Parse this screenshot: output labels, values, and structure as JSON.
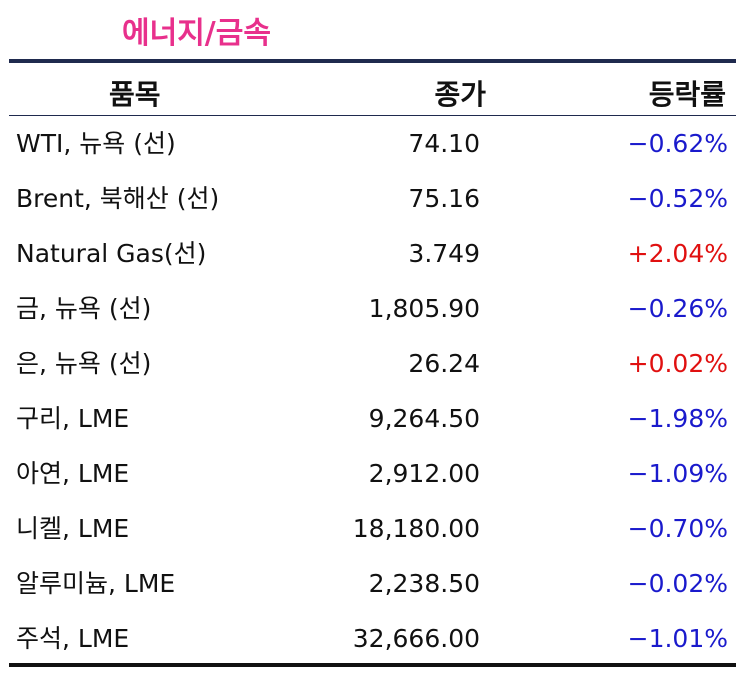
{
  "title": "에너지/금속",
  "header": {
    "item": "품목",
    "price": "종가",
    "change": "등락률"
  },
  "colors": {
    "title": "#e8308c",
    "rule": "#1f2a4e",
    "down": "#1a1acc",
    "up": "#e01010"
  },
  "rows": [
    {
      "name": "WTI, 뉴욕 (선)",
      "price": "74.10",
      "change": "−0.62%",
      "dir": "down"
    },
    {
      "name": "Brent, 북해산 (선)",
      "price": "75.16",
      "change": "−0.52%",
      "dir": "down"
    },
    {
      "name": "Natural Gas(선)",
      "price": "3.749",
      "change": "+2.04%",
      "dir": "up"
    },
    {
      "name": "금, 뉴욕  (선)",
      "price": "1,805.90",
      "change": "−0.26%",
      "dir": "down"
    },
    {
      "name": "은, 뉴욕  (선)",
      "price": "26.24",
      "change": "+0.02%",
      "dir": "up"
    },
    {
      "name": "구리, LME",
      "price": "9,264.50",
      "change": "−1.98%",
      "dir": "down"
    },
    {
      "name": "아연, LME",
      "price": "2,912.00",
      "change": "−1.09%",
      "dir": "down"
    },
    {
      "name": "니켈, LME",
      "price": "18,180.00",
      "change": "−0.70%",
      "dir": "down"
    },
    {
      "name": "알루미늄, LME",
      "price": "2,238.50",
      "change": "−0.02%",
      "dir": "down"
    },
    {
      "name": "주석, LME",
      "price": "32,666.00",
      "change": "−1.01%",
      "dir": "down"
    }
  ]
}
